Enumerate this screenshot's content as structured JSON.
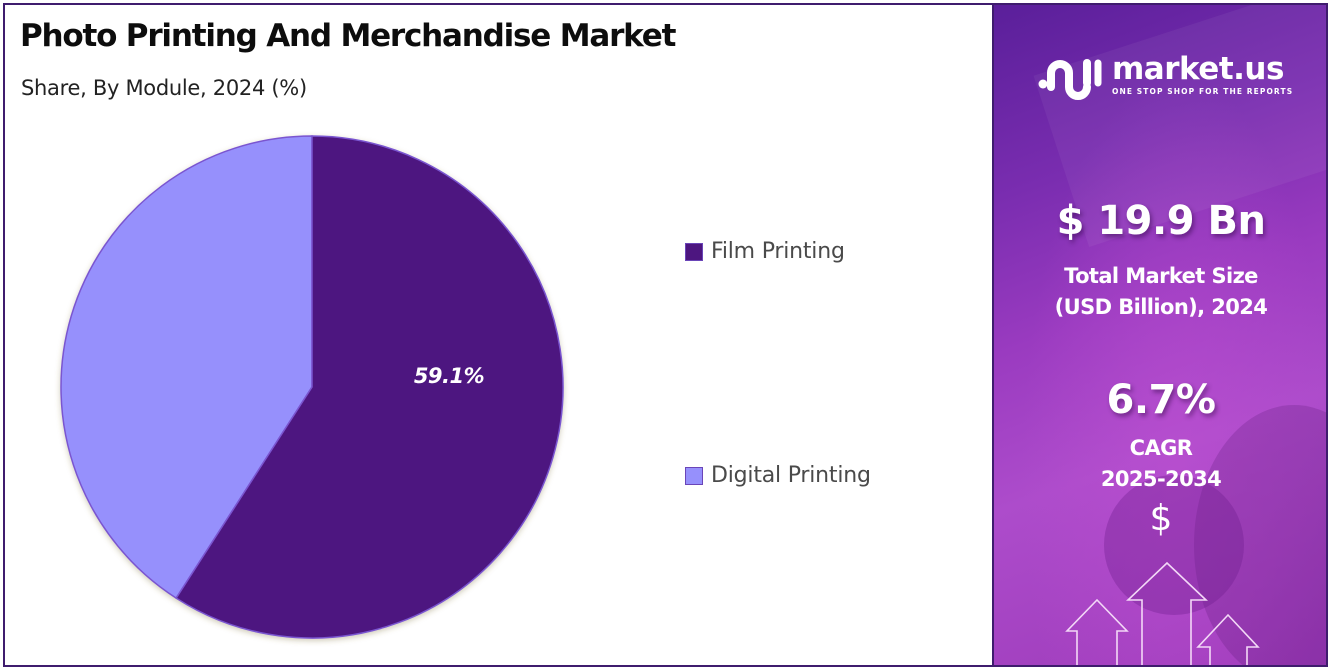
{
  "header": {
    "title": "Photo Printing And Merchandise Market",
    "subtitle": "Share, By Module, 2024 (%)"
  },
  "chart": {
    "slice_label": "59.1%",
    "legend": [
      {
        "label": "Film Printing",
        "color": "#4d1680"
      },
      {
        "label": "Digital Printing",
        "color": "#9690fc"
      }
    ]
  },
  "chart_data": {
    "type": "pie",
    "title": "Photo Printing And Merchandise Market",
    "subtitle": "Share, By Module, 2024 (%)",
    "categories": [
      "Film Printing",
      "Digital Printing"
    ],
    "values": [
      59.1,
      40.9
    ],
    "colors": [
      "#4d1680",
      "#9690fc"
    ],
    "data_labels": [
      "59.1%",
      ""
    ],
    "start_angle": "12 o'clock",
    "direction": "clockwise",
    "legend_position": "right"
  },
  "sidebar": {
    "brand": {
      "name": "market.us",
      "tagline": "ONE STOP SHOP FOR THE REPORTS"
    },
    "market_size": {
      "value": "$ 19.9 Bn",
      "label_line1": "Total Market Size",
      "label_line2": "(USD Billion), 2024"
    },
    "cagr": {
      "value": "6.7%",
      "label_line1": "CAGR",
      "label_line2": "2025-2034"
    },
    "dollar_symbol": "$"
  }
}
